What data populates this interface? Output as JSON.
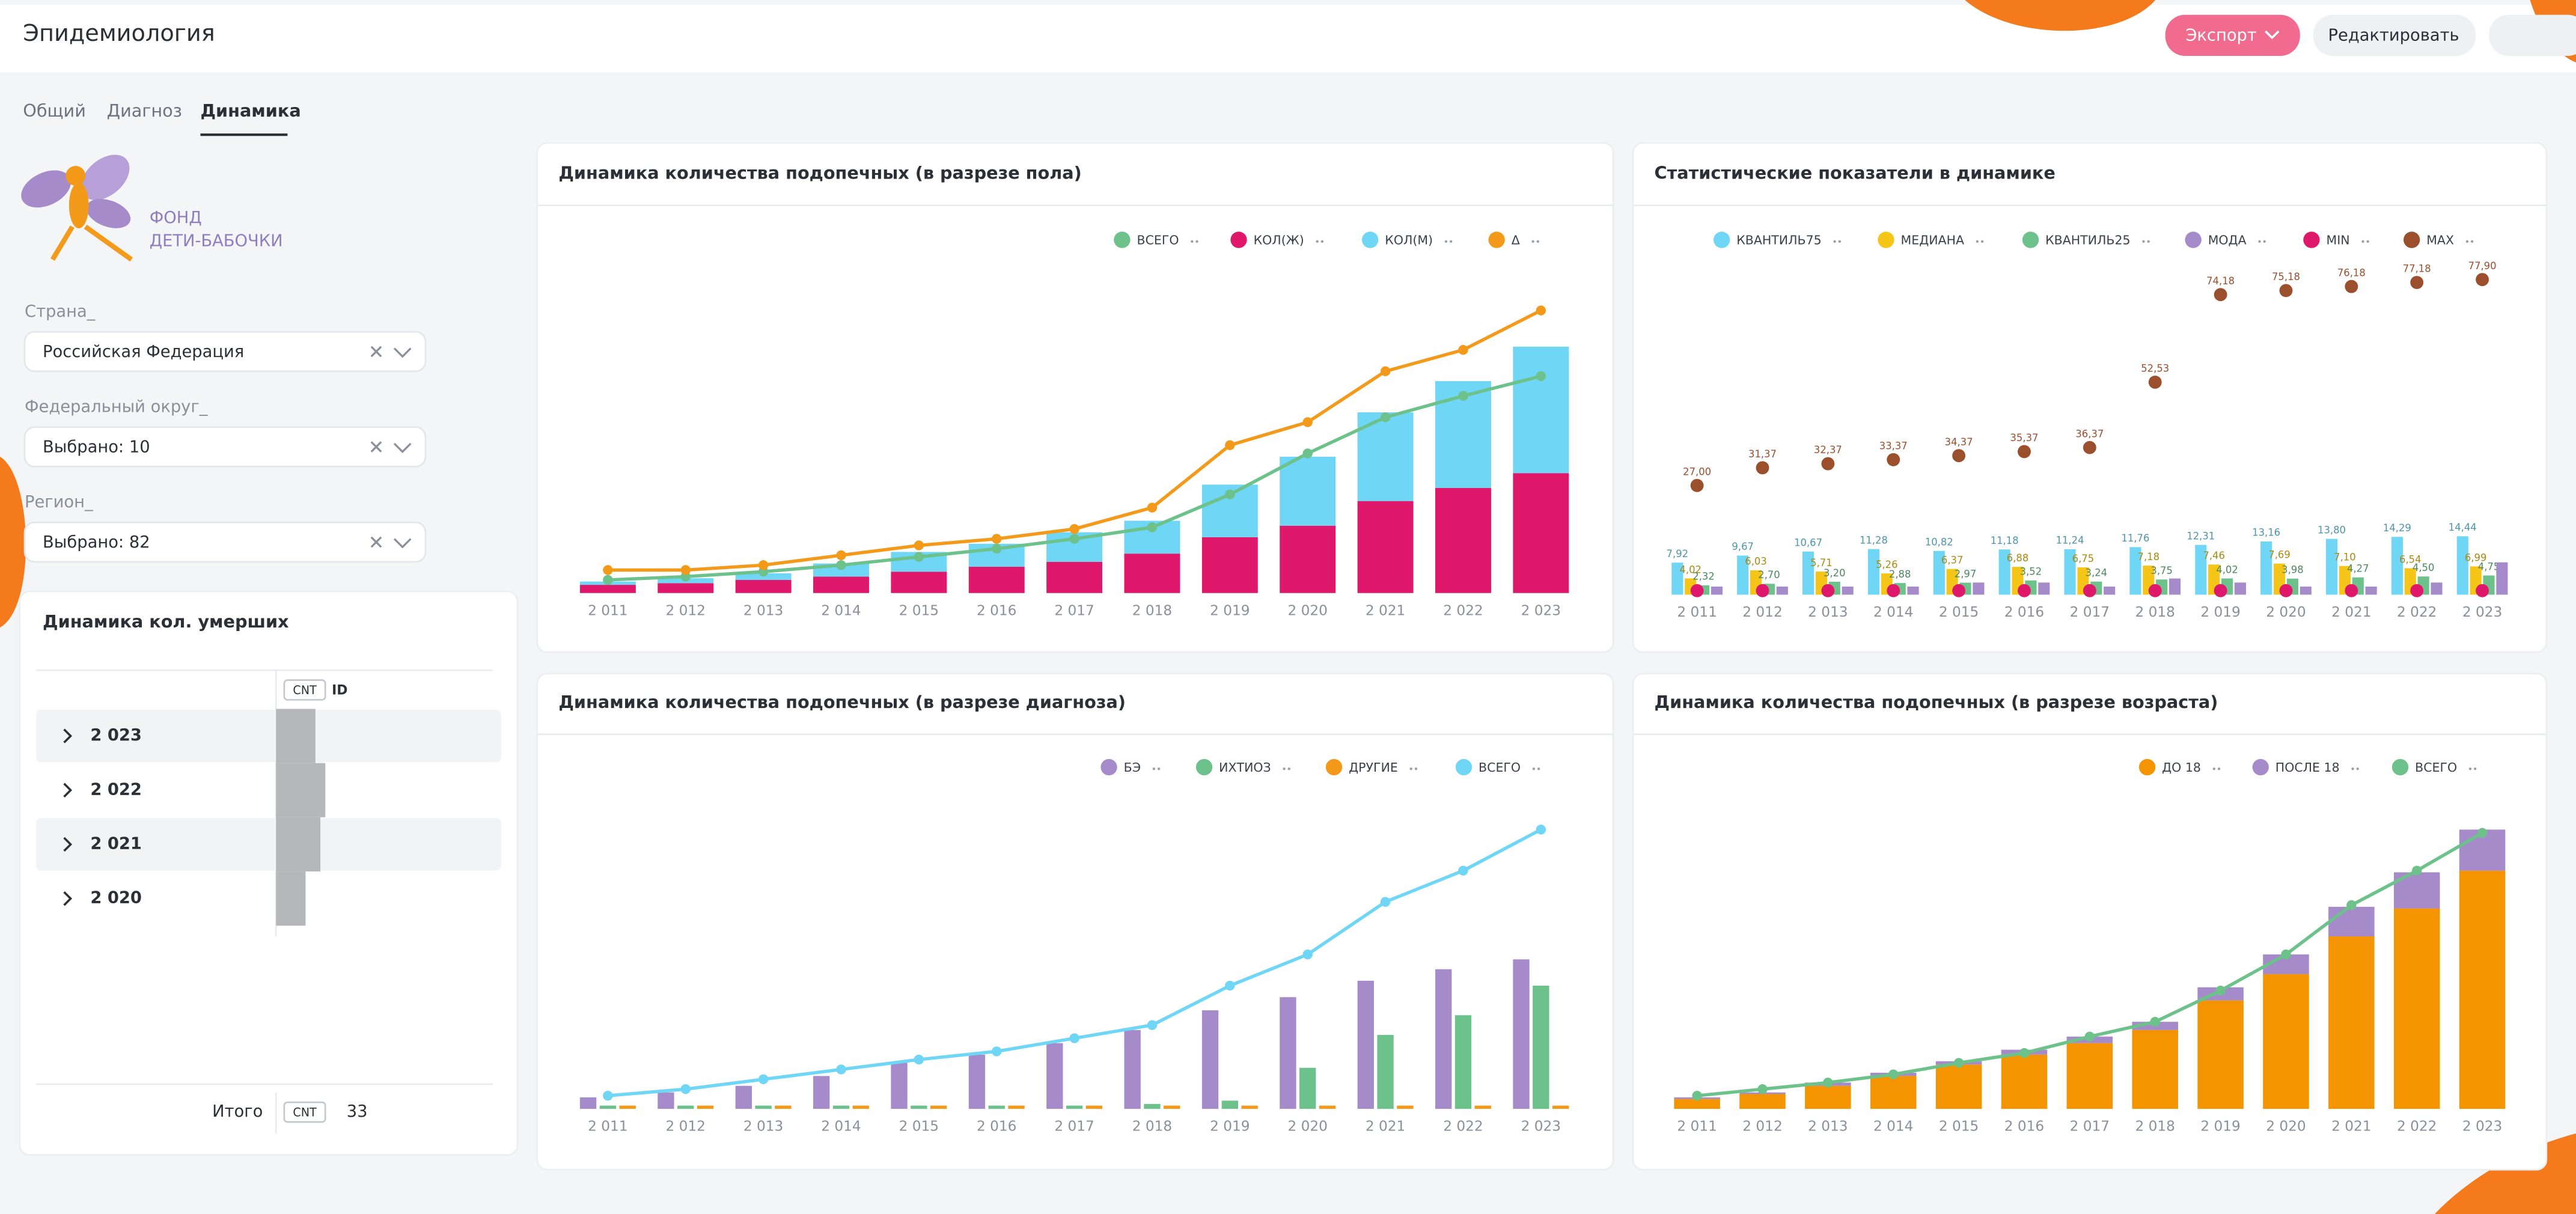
{
  "header": {
    "title": "Эпидемиология",
    "buttons": [
      "Экспорт",
      "Редактировать"
    ]
  },
  "tabs": [
    "Общий",
    "Диагноз",
    "Динамика"
  ],
  "logo": [
    "ФОНД",
    "ДЕТИ-БАБОЧКИ"
  ],
  "filters": [
    {
      "label": "Страна_",
      "value": "Российская Федерация"
    },
    {
      "label": "Федеральный округ_",
      "value": "Выбрано: 10"
    },
    {
      "label": "Регион_",
      "value": "Выбрано: 82"
    }
  ],
  "deaths_table": {
    "title": "Динамика кол. умерших",
    "columns": [
      "CNT",
      "ID"
    ],
    "rows": [
      {
        "label": "2 023",
        "cnt": 8
      },
      {
        "label": "2 022",
        "cnt": 10
      },
      {
        "label": "2 021",
        "cnt": 9
      },
      {
        "label": "2 020",
        "cnt": 6
      }
    ],
    "total_label": "Итого",
    "total_column": "CNT",
    "total": 33
  },
  "chart_data": [
    {
      "type": "combo",
      "title": "Динамика количества подопечных (в разрезе пола)",
      "stacked": true,
      "categories": [
        "2 011",
        "2 012",
        "2 013",
        "2 014",
        "2 015",
        "2 016",
        "2 017",
        "2 018",
        "2 019",
        "2 020",
        "2 021",
        "2 022",
        "2 023"
      ],
      "ylim": [
        0,
        220
      ],
      "series": [
        {
          "name": "ВСЕГО",
          "color": "#6cc28a",
          "type": "line",
          "values": [
            8,
            10,
            13,
            17,
            22,
            27,
            33,
            40,
            60,
            85,
            107,
            120,
            132
          ]
        },
        {
          "name": "КОЛ(Ж)",
          "color": "#e0186c",
          "type": "bar",
          "values": [
            5,
            6,
            8,
            10,
            13,
            16,
            19,
            24,
            34,
            41,
            56,
            64,
            73
          ]
        },
        {
          "name": "КОЛ(М)",
          "color": "#6fd6f5",
          "type": "bar",
          "values": [
            2,
            3,
            4,
            8,
            12,
            14,
            18,
            20,
            32,
            42,
            54,
            65,
            77
          ]
        },
        {
          "name": "Δ",
          "color": "#f39a1b",
          "type": "line",
          "values": [
            14,
            14,
            17,
            23,
            29,
            33,
            39,
            52,
            90,
            104,
            135,
            148,
            172
          ]
        }
      ]
    },
    {
      "type": "combo",
      "title": "Статистические показатели в динамике",
      "stacked": false,
      "categories": [
        "2 011",
        "2 012",
        "2 013",
        "2 014",
        "2 015",
        "2 016",
        "2 017",
        "2 018",
        "2 019",
        "2 020",
        "2 021",
        "2 022",
        "2 023"
      ],
      "ylim": [
        0,
        80
      ],
      "series": [
        {
          "name": "КВАНТИЛЬ75",
          "color": "#6fd6f5",
          "type": "bar",
          "values": [
            7.92,
            9.67,
            10.67,
            11.28,
            10.82,
            11.18,
            11.24,
            11.76,
            12.31,
            13.16,
            13.8,
            14.29,
            14.44
          ],
          "value_labels": [
            "7,92",
            "9,67",
            "10,67",
            "11,28",
            "10,82",
            "11,18",
            "11,24",
            "11,76",
            "12,31",
            "13,16",
            "13,80",
            "14,29",
            "14,44"
          ]
        },
        {
          "name": "МЕДИАНА",
          "color": "#f5c518",
          "type": "bar",
          "values": [
            4.02,
            6.03,
            5.71,
            5.26,
            6.37,
            6.88,
            6.75,
            7.18,
            7.46,
            7.69,
            7.1,
            6.54,
            6.99
          ],
          "value_labels": [
            "4,02",
            "6,03",
            "5,71",
            "5,26",
            "6,37",
            "6,88",
            "6,75",
            "7,18",
            "7,46",
            "7,69",
            "7,10",
            "6,54",
            "6,99"
          ]
        },
        {
          "name": "КВАНТИЛЬ25",
          "color": "#6cc28a",
          "type": "bar",
          "values": [
            2.32,
            2.7,
            3.2,
            2.88,
            2.97,
            3.52,
            3.24,
            3.75,
            4.02,
            3.98,
            4.27,
            4.5,
            4.75
          ],
          "value_labels": [
            "2,32",
            "2,70",
            "3,20",
            "2,88",
            "2,97",
            "3,52",
            "3,24",
            "3,75",
            "4,02",
            "3,98",
            "4,27",
            "4,50",
            "4,75"
          ]
        },
        {
          "name": "МОДА",
          "color": "#a58bc9",
          "type": "bar",
          "values": [
            2,
            2,
            2,
            2,
            3,
            3,
            2,
            4,
            3,
            2,
            2,
            3,
            8
          ]
        },
        {
          "name": "MIN",
          "color": "#e0186c",
          "type": "scatter",
          "values": [
            1,
            1,
            1,
            1,
            1,
            1,
            1,
            1,
            1,
            1,
            1,
            1,
            1
          ]
        },
        {
          "name": "MAX",
          "color": "#9b4f2d",
          "type": "scatter",
          "values": [
            27,
            31.37,
            32.37,
            33.37,
            34.37,
            35.37,
            36.37,
            52.53,
            74.18,
            75.18,
            76.18,
            77.18,
            77.9
          ],
          "value_labels": [
            "27,00",
            "31,37",
            "32,37",
            "33,37",
            "34,37",
            "35,37",
            "36,37",
            "52,53",
            "74,18",
            "75,18",
            "76,18",
            "77,18",
            "77,90"
          ]
        }
      ]
    },
    {
      "type": "combo",
      "title": "Динамика количества подопечных (в разрезе диагноза)",
      "stacked": false,
      "categories": [
        "2 011",
        "2 012",
        "2 013",
        "2 014",
        "2 015",
        "2 016",
        "2 017",
        "2 018",
        "2 019",
        "2 020",
        "2 021",
        "2 022",
        "2 023"
      ],
      "ylim": [
        0,
        190
      ],
      "series": [
        {
          "name": "БЭ",
          "color": "#a58bc9",
          "type": "bar",
          "values": [
            7,
            10,
            14,
            20,
            28,
            33,
            40,
            48,
            60,
            68,
            78,
            85,
            91
          ]
        },
        {
          "name": "ИХТИОЗ",
          "color": "#6cc28a",
          "type": "bar",
          "values": [
            2,
            2,
            2,
            2,
            2,
            2,
            2,
            3,
            5,
            25,
            45,
            57,
            75
          ]
        },
        {
          "name": "ДРУГИЕ",
          "color": "#f39a1b",
          "type": "bar",
          "values": [
            2,
            2,
            2,
            2,
            2,
            2,
            2,
            2,
            2,
            2,
            2,
            2,
            2
          ]
        },
        {
          "name": "ВСЕГО",
          "color": "#6fd6f5",
          "type": "line",
          "values": [
            8,
            12,
            18,
            24,
            30,
            35,
            43,
            51,
            75,
            94,
            126,
            145,
            170
          ]
        }
      ]
    },
    {
      "type": "combo",
      "title": "Динамика количества подопечных (в разрезе возраста)",
      "stacked": true,
      "categories": [
        "2 011",
        "2 012",
        "2 013",
        "2 014",
        "2 015",
        "2 016",
        "2 017",
        "2 018",
        "2 019",
        "2 020",
        "2 021",
        "2 022",
        "2 023"
      ],
      "ylim": [
        0,
        180
      ],
      "series": [
        {
          "name": "ДО 18",
          "color": "#f39400",
          "type": "bar",
          "values": [
            6,
            9,
            14,
            20,
            27,
            33,
            40,
            48,
            66,
            82,
            105,
            122,
            145
          ]
        },
        {
          "name": "ПОСЛЕ 18",
          "color": "#a58bc9",
          "type": "bar",
          "values": [
            1,
            1,
            2,
            2,
            2,
            3,
            4,
            5,
            8,
            12,
            18,
            22,
            25
          ]
        },
        {
          "name": "ВСЕГО",
          "color": "#6cc28a",
          "type": "line",
          "values": [
            8,
            12,
            16,
            21,
            28,
            34,
            44,
            53,
            72,
            94,
            124,
            145,
            168
          ]
        }
      ]
    }
  ]
}
